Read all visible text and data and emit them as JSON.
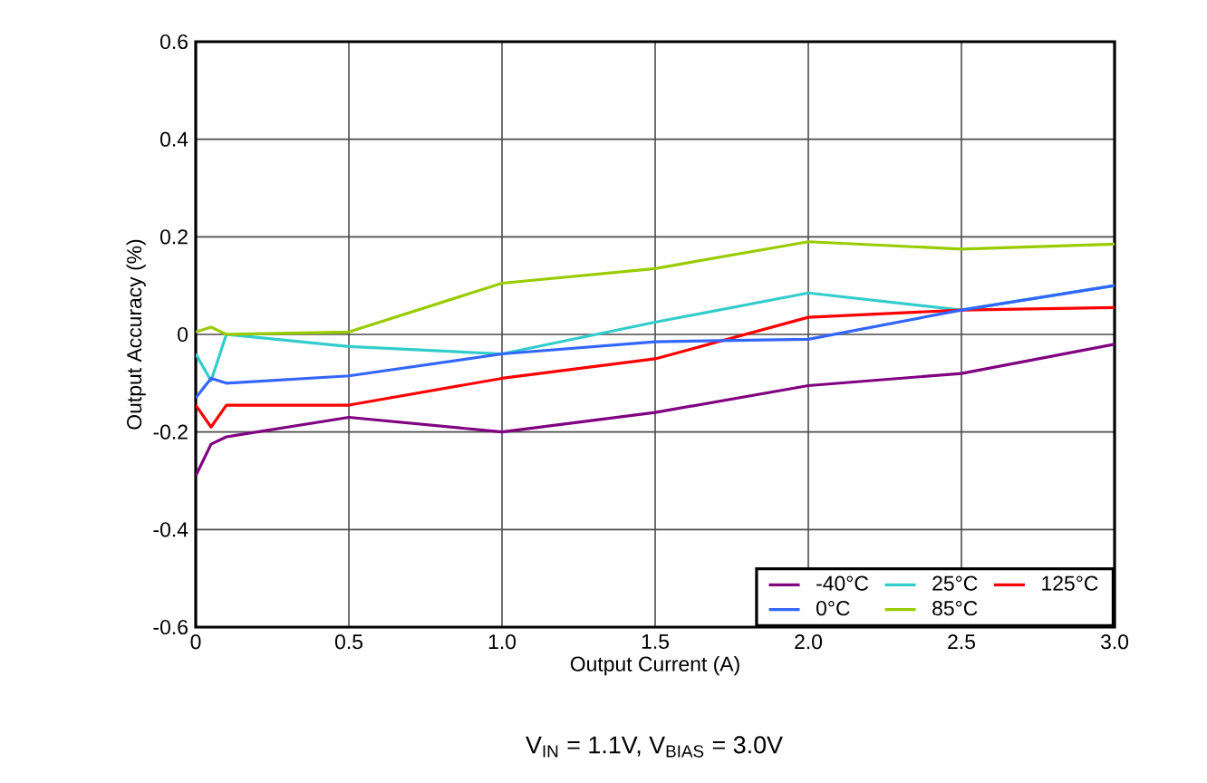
{
  "chart_data": {
    "type": "line",
    "xlabel": "Output Current (A)",
    "ylabel": "Output Accuracy (%)",
    "annotations": [
      "V$_{IN}$ = 1.1V, V$_{BIAS}$ = 3.0V"
    ],
    "x": [
      0,
      0.05,
      0.1,
      0.5,
      1.0,
      1.5,
      2.0,
      2.5,
      3.0
    ],
    "series": [
      {
        "name": "-40°C",
        "color": "#800080",
        "values": [
          -0.29,
          -0.225,
          -0.21,
          -0.17,
          -0.2,
          -0.16,
          -0.105,
          -0.08,
          -0.02
        ]
      },
      {
        "name": "25°C",
        "color": "#33cccc",
        "values": [
          -0.04,
          -0.095,
          0,
          -0.025,
          -0.04,
          0.025,
          0.085,
          0.05,
          0.1
        ]
      },
      {
        "name": "125°C",
        "color": "#ff0000",
        "values": [
          -0.145,
          -0.19,
          -0.145,
          -0.145,
          -0.09,
          -0.05,
          0.035,
          0.05,
          0.055
        ]
      },
      {
        "name": "0°C",
        "color": "#3366ff",
        "values": [
          -0.13,
          -0.09,
          -0.1,
          -0.085,
          -0.04,
          -0.015,
          -0.01,
          0.05,
          0.1
        ]
      },
      {
        "name": "85°C",
        "color": "#99cc00",
        "values": [
          0.005,
          0.015,
          0,
          0.005,
          0.105,
          0.135,
          0.19,
          0.175,
          0.185
        ]
      }
    ],
    "xlim": [
      0,
      3.0
    ],
    "ylim": [
      -0.6,
      0.6
    ],
    "xticks": [
      0,
      0.5,
      {
        "value": 1,
        "label": "1.0"
      },
      1.5,
      {
        "value": 2,
        "label": "2.0"
      },
      2.5,
      {
        "value": 3,
        "label": "3.0"
      }
    ],
    "yticks": [
      -0.6,
      -0.4,
      -0.2,
      0,
      0.2,
      0.4,
      0.6
    ],
    "grid": true,
    "legend": "bottom right",
    "marker": "none",
    "line_style": "solid"
  }
}
